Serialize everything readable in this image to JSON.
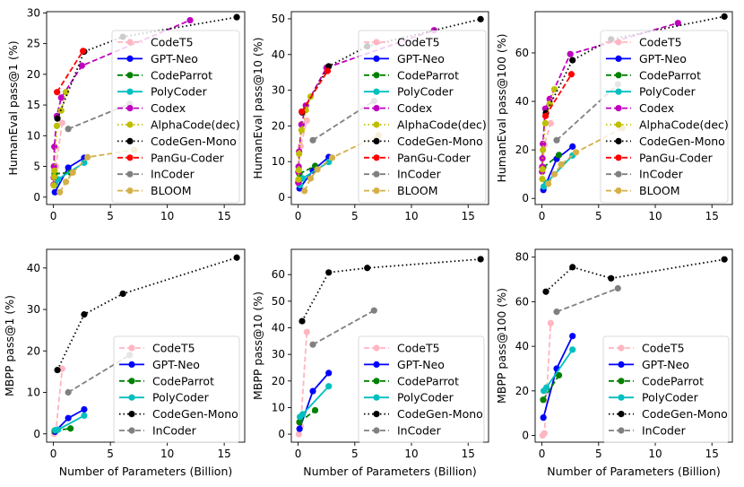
{
  "figure": {
    "shared_xlabel": "Number of Parameters (Billion)"
  },
  "chart_data": [
    {
      "type": "line",
      "ylabel": "HumanEval pass@1 (%)",
      "xlabel": "",
      "xlim": [
        -0.6,
        16.8
      ],
      "ylim": [
        -1.2,
        30.2
      ],
      "xticks": [
        0,
        5,
        10,
        15
      ],
      "yticks": [
        0,
        5,
        10,
        15,
        20,
        25,
        30
      ],
      "legend_position": "right",
      "series": [
        {
          "name": "CodeT5",
          "color": "#ffb6c1",
          "style": "dashed",
          "x": [
            0.06,
            0.22,
            0.77
          ],
          "y": [
            3.5,
            5.0,
            12.1
          ]
        },
        {
          "name": "GPT-Neo",
          "color": "#0000ff",
          "style": "solid",
          "x": [
            0.125,
            1.3,
            2.7
          ],
          "y": [
            0.8,
            4.8,
            6.4
          ]
        },
        {
          "name": "CodeParrot",
          "color": "#008000",
          "style": "dashed",
          "x": [
            0.11,
            1.5
          ],
          "y": [
            3.8,
            4.0
          ]
        },
        {
          "name": "PolyCoder",
          "color": "#00bfbf",
          "style": "solid",
          "x": [
            0.16,
            0.4,
            2.7
          ],
          "y": [
            2.1,
            2.9,
            5.6
          ]
        },
        {
          "name": "Codex",
          "color": "#bf00bf",
          "style": "dashed",
          "x": [
            0.0125,
            0.025,
            0.042,
            0.085,
            0.3,
            0.68,
            2.5,
            12.0
          ],
          "y": [
            2.0,
            3.2,
            5.0,
            8.2,
            13.2,
            16.2,
            21.4,
            28.8
          ]
        },
        {
          "name": "AlphaCode(dec)",
          "color": "#bfbf00",
          "style": "dotted",
          "x": [
            0.029,
            0.055,
            0.089,
            0.302,
            0.685,
            1.1
          ],
          "y": [
            1.9,
            3.3,
            4.3,
            11.6,
            14.1,
            17.1
          ]
        },
        {
          "name": "CodeGen-Mono",
          "color": "#000000",
          "style": "dotted",
          "x": [
            0.35,
            2.7,
            6.1,
            16.1
          ],
          "y": [
            12.8,
            23.7,
            26.1,
            29.3
          ]
        },
        {
          "name": "PanGu-Coder",
          "color": "#ff0000",
          "style": "dashed",
          "x": [
            0.317,
            2.6
          ],
          "y": [
            17.1,
            23.8
          ]
        },
        {
          "name": "InCoder",
          "color": "#808080",
          "style": "dashed",
          "x": [
            1.3,
            6.7
          ],
          "y": [
            11.1,
            15.2
          ]
        },
        {
          "name": "BLOOM",
          "color": "#d4b04a",
          "style": "dashed",
          "x": [
            0.56,
            1.1,
            1.7,
            3.0,
            7.1
          ],
          "y": [
            0.8,
            2.5,
            4.0,
            6.5,
            7.7
          ]
        }
      ]
    },
    {
      "type": "line",
      "ylabel": "HumanEval pass@10 (%)",
      "xlabel": "",
      "xlim": [
        -0.6,
        16.8
      ],
      "ylim": [
        -2.0,
        52.0
      ],
      "xticks": [
        0,
        5,
        10,
        15
      ],
      "yticks": [
        0,
        10,
        20,
        30,
        40,
        50
      ],
      "legend_position": "right",
      "series": [
        {
          "name": "CodeT5",
          "color": "#ffb6c1",
          "style": "dashed",
          "x": [
            0.06,
            0.22,
            0.77
          ],
          "y": [
            8.0,
            14.3,
            21.5
          ]
        },
        {
          "name": "GPT-Neo",
          "color": "#0000ff",
          "style": "solid",
          "x": [
            0.125,
            1.3,
            2.7
          ],
          "y": [
            2.5,
            7.5,
            11.3
          ]
        },
        {
          "name": "CodeParrot",
          "color": "#008000",
          "style": "dashed",
          "x": [
            0.11,
            1.5
          ],
          "y": [
            6.6,
            8.8
          ]
        },
        {
          "name": "PolyCoder",
          "color": "#00bfbf",
          "style": "solid",
          "x": [
            0.16,
            0.4,
            2.7
          ],
          "y": [
            3.4,
            5.3,
            9.9
          ]
        },
        {
          "name": "Codex",
          "color": "#bf00bf",
          "style": "dashed",
          "x": [
            0.0125,
            0.025,
            0.042,
            0.085,
            0.3,
            0.68,
            2.5,
            12.0
          ],
          "y": [
            4.1,
            7.1,
            8.6,
            12.8,
            20.4,
            25.7,
            36.3,
            46.8
          ]
        },
        {
          "name": "AlphaCode(dec)",
          "color": "#bfbf00",
          "style": "dotted",
          "x": [
            0.029,
            0.055,
            0.089,
            0.302,
            0.685,
            1.1
          ],
          "y": [
            5.0,
            7.6,
            12.2,
            18.8,
            24.4,
            28.2
          ]
        },
        {
          "name": "CodeGen-Mono",
          "color": "#000000",
          "style": "dotted",
          "x": [
            0.35,
            2.7,
            6.1,
            16.1
          ],
          "y": [
            23.8,
            36.7,
            42.3,
            49.9
          ]
        },
        {
          "name": "PanGu-Coder",
          "color": "#ff0000",
          "style": "dashed",
          "x": [
            0.317,
            2.6
          ],
          "y": [
            24.0,
            35.4
          ]
        },
        {
          "name": "InCoder",
          "color": "#808080",
          "style": "dashed",
          "x": [
            1.3,
            6.7
          ],
          "y": [
            16.0,
            27.0
          ]
        },
        {
          "name": "BLOOM",
          "color": "#d4b04a",
          "style": "dashed",
          "x": [
            0.56,
            1.1,
            1.7,
            3.0,
            7.1
          ],
          "y": [
            1.8,
            5.3,
            7.8,
            11.1,
            17.4
          ]
        }
      ]
    },
    {
      "type": "line",
      "ylabel": "HumanEval pass@100 (%)",
      "xlabel": "",
      "xlim": [
        -0.6,
        16.8
      ],
      "ylim": [
        -2.5,
        77.0
      ],
      "xticks": [
        0,
        5,
        10,
        15
      ],
      "yticks": [
        0,
        20,
        40,
        60
      ],
      "legend_position": "right",
      "series": [
        {
          "name": "CodeT5",
          "color": "#ffb6c1",
          "style": "dashed",
          "x": [
            0.06,
            0.22,
            0.77
          ],
          "y": [
            13.0,
            22.0,
            31.0
          ]
        },
        {
          "name": "GPT-Neo",
          "color": "#0000ff",
          "style": "solid",
          "x": [
            0.125,
            1.3,
            2.7
          ],
          "y": [
            3.5,
            16.3,
            21.4
          ]
        },
        {
          "name": "CodeParrot",
          "color": "#008000",
          "style": "dashed",
          "x": [
            0.11,
            1.5
          ],
          "y": [
            12.8,
            17.9
          ]
        },
        {
          "name": "PolyCoder",
          "color": "#00bfbf",
          "style": "solid",
          "x": [
            0.16,
            0.4,
            2.7
          ],
          "y": [
            4.9,
            6.4,
            17.7
          ]
        },
        {
          "name": "Codex",
          "color": "#bf00bf",
          "style": "dashed",
          "x": [
            0.0125,
            0.025,
            0.042,
            0.085,
            0.3,
            0.68,
            2.5,
            12.0
          ],
          "y": [
            11.0,
            13.0,
            16.5,
            22.5,
            37.0,
            41.0,
            59.5,
            72.3
          ]
        },
        {
          "name": "AlphaCode(dec)",
          "color": "#bfbf00",
          "style": "dotted",
          "x": [
            0.029,
            0.055,
            0.089,
            0.302,
            0.685,
            1.1
          ],
          "y": [
            8.0,
            12.0,
            20.0,
            31.0,
            39.0,
            45.0
          ]
        },
        {
          "name": "CodeGen-Mono",
          "color": "#000000",
          "style": "dotted",
          "x": [
            0.35,
            2.7,
            6.1,
            16.1
          ],
          "y": [
            35.2,
            57.0,
            65.6,
            75.0
          ]
        },
        {
          "name": "PanGu-Coder",
          "color": "#ff0000",
          "style": "dashed",
          "x": [
            0.317,
            2.6
          ],
          "y": [
            34.0,
            51.2
          ]
        },
        {
          "name": "InCoder",
          "color": "#808080",
          "style": "dashed",
          "x": [
            1.3,
            6.7
          ],
          "y": [
            24.0,
            47.0
          ]
        },
        {
          "name": "BLOOM",
          "color": "#d4b04a",
          "style": "dashed",
          "x": [
            0.56,
            1.1,
            1.7,
            3.0,
            7.1
          ],
          "y": [
            6.0,
            10.0,
            14.0,
            19.0,
            29.0
          ]
        }
      ]
    },
    {
      "type": "line",
      "ylabel": "MBPP pass@1 (%)",
      "xlabel": "Number of Parameters (Billion)",
      "xlim": [
        -0.6,
        16.8
      ],
      "ylim": [
        -2.0,
        44.5
      ],
      "xticks": [
        0,
        5,
        10,
        15
      ],
      "yticks": [
        0,
        10,
        20,
        30,
        40
      ],
      "legend_position": "bottom-right",
      "series": [
        {
          "name": "CodeT5",
          "color": "#ffb6c1",
          "style": "dashed",
          "x": [
            0.06,
            0.22,
            0.77
          ],
          "y": [
            0.0,
            0.9,
            15.7
          ]
        },
        {
          "name": "GPT-Neo",
          "color": "#0000ff",
          "style": "solid",
          "x": [
            0.125,
            1.3,
            2.7
          ],
          "y": [
            0.5,
            3.8,
            5.9
          ]
        },
        {
          "name": "CodeParrot",
          "color": "#008000",
          "style": "dashed",
          "x": [
            0.11,
            1.5
          ],
          "y": [
            0.8,
            1.3
          ]
        },
        {
          "name": "PolyCoder",
          "color": "#00bfbf",
          "style": "solid",
          "x": [
            0.16,
            0.4,
            2.7
          ],
          "y": [
            0.9,
            1.0,
            4.4
          ]
        },
        {
          "name": "CodeGen-Mono",
          "color": "#000000",
          "style": "dotted",
          "x": [
            0.35,
            2.7,
            6.1,
            16.1
          ],
          "y": [
            15.4,
            28.8,
            33.8,
            42.5
          ]
        },
        {
          "name": "InCoder",
          "color": "#808080",
          "style": "dashed",
          "x": [
            1.3,
            6.7
          ],
          "y": [
            10.0,
            19.0
          ]
        }
      ]
    },
    {
      "type": "line",
      "ylabel": "MBPP pass@10 (%)",
      "xlabel": "Number of Parameters (Billion)",
      "xlim": [
        -0.6,
        16.8
      ],
      "ylim": [
        -3.0,
        69.5
      ],
      "xticks": [
        0,
        5,
        10,
        15
      ],
      "yticks": [
        0,
        10,
        20,
        30,
        40,
        50,
        60
      ],
      "legend_position": "bottom-right",
      "series": [
        {
          "name": "CodeT5",
          "color": "#ffb6c1",
          "style": "dashed",
          "x": [
            0.06,
            0.22,
            0.77
          ],
          "y": [
            0.0,
            3.0,
            38.4
          ]
        },
        {
          "name": "GPT-Neo",
          "color": "#0000ff",
          "style": "solid",
          "x": [
            0.125,
            1.3,
            2.7
          ],
          "y": [
            2.0,
            16.2,
            23.0
          ]
        },
        {
          "name": "CodeParrot",
          "color": "#008000",
          "style": "dashed",
          "x": [
            0.11,
            1.5
          ],
          "y": [
            4.5,
            9.0
          ]
        },
        {
          "name": "PolyCoder",
          "color": "#00bfbf",
          "style": "solid",
          "x": [
            0.16,
            0.4,
            2.7
          ],
          "y": [
            6.5,
            7.5,
            18.0
          ]
        },
        {
          "name": "CodeGen-Mono",
          "color": "#000000",
          "style": "dotted",
          "x": [
            0.35,
            2.7,
            6.1,
            16.1
          ],
          "y": [
            42.5,
            60.8,
            62.5,
            65.8
          ]
        },
        {
          "name": "InCoder",
          "color": "#808080",
          "style": "dashed",
          "x": [
            1.3,
            6.7
          ],
          "y": [
            33.7,
            46.5
          ]
        }
      ]
    },
    {
      "type": "line",
      "ylabel": "MBPP pass@100 (%)",
      "xlabel": "Number of Parameters (Billion)",
      "xlim": [
        -0.6,
        16.8
      ],
      "ylim": [
        -3.0,
        83.5
      ],
      "xticks": [
        0,
        5,
        10,
        15
      ],
      "yticks": [
        0,
        20,
        40,
        60,
        80
      ],
      "legend_position": "bottom-right",
      "series": [
        {
          "name": "CodeT5",
          "color": "#ffb6c1",
          "style": "dashed",
          "x": [
            0.06,
            0.22,
            0.77
          ],
          "y": [
            0.0,
            1.0,
            50.4
          ]
        },
        {
          "name": "GPT-Neo",
          "color": "#0000ff",
          "style": "solid",
          "x": [
            0.125,
            1.3,
            2.7
          ],
          "y": [
            8.0,
            30.0,
            44.6
          ]
        },
        {
          "name": "CodeParrot",
          "color": "#008000",
          "style": "dashed",
          "x": [
            0.11,
            1.5
          ],
          "y": [
            16.0,
            27.0
          ]
        },
        {
          "name": "PolyCoder",
          "color": "#00bfbf",
          "style": "solid",
          "x": [
            0.16,
            0.4,
            2.7
          ],
          "y": [
            20.0,
            21.5,
            38.5
          ]
        },
        {
          "name": "CodeGen-Mono",
          "color": "#000000",
          "style": "dotted",
          "x": [
            0.35,
            2.7,
            6.1,
            16.1
          ],
          "y": [
            64.5,
            75.5,
            70.5,
            79.0
          ]
        },
        {
          "name": "InCoder",
          "color": "#808080",
          "style": "dashed",
          "x": [
            1.3,
            6.7
          ],
          "y": [
            55.5,
            66.0
          ]
        }
      ]
    }
  ]
}
